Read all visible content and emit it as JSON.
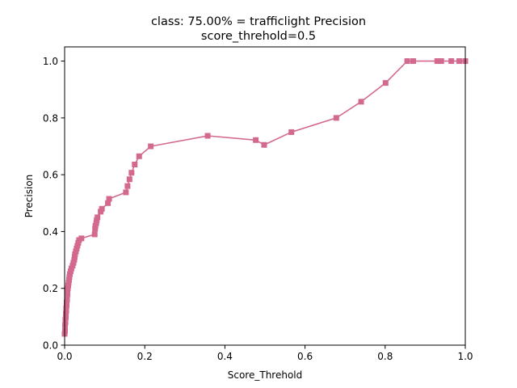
{
  "chart_data": {
    "type": "line",
    "title_line1": "class: 75.00% = trafficlight Precision",
    "title_line2": "score_threhold=0.5",
    "xlabel": "Score_Threhold",
    "ylabel": "Precision",
    "xlim": [
      0.0,
      1.0
    ],
    "ylim": [
      0.0,
      1.05
    ],
    "xticks": [
      0.0,
      0.2,
      0.4,
      0.6,
      0.8,
      1.0
    ],
    "yticks": [
      0.0,
      0.2,
      0.4,
      0.6,
      0.8,
      1.0
    ],
    "xtick_labels": [
      "0.0",
      "0.2",
      "0.4",
      "0.6",
      "0.8",
      "1.0"
    ],
    "ytick_labels": [
      "0.0",
      "0.2",
      "0.4",
      "0.6",
      "0.8",
      "1.0"
    ],
    "grid": false,
    "series": [
      {
        "color": "#d3698f",
        "marker": "square",
        "points": [
          [
            0.0,
            0.04
          ],
          [
            0.001,
            0.05
          ],
          [
            0.001,
            0.07
          ],
          [
            0.002,
            0.08
          ],
          [
            0.002,
            0.09
          ],
          [
            0.003,
            0.1
          ],
          [
            0.003,
            0.11
          ],
          [
            0.004,
            0.12
          ],
          [
            0.004,
            0.13
          ],
          [
            0.005,
            0.14
          ],
          [
            0.005,
            0.15
          ],
          [
            0.006,
            0.16
          ],
          [
            0.006,
            0.17
          ],
          [
            0.007,
            0.18
          ],
          [
            0.007,
            0.19
          ],
          [
            0.008,
            0.2
          ],
          [
            0.009,
            0.21
          ],
          [
            0.01,
            0.22
          ],
          [
            0.011,
            0.23
          ],
          [
            0.012,
            0.24
          ],
          [
            0.013,
            0.25
          ],
          [
            0.015,
            0.26
          ],
          [
            0.017,
            0.27
          ],
          [
            0.02,
            0.28
          ],
          [
            0.022,
            0.29
          ],
          [
            0.024,
            0.3
          ],
          [
            0.025,
            0.31
          ],
          [
            0.026,
            0.32
          ],
          [
            0.028,
            0.33
          ],
          [
            0.03,
            0.34
          ],
          [
            0.032,
            0.35
          ],
          [
            0.034,
            0.36
          ],
          [
            0.036,
            0.37
          ],
          [
            0.042,
            0.376
          ],
          [
            0.075,
            0.39
          ],
          [
            0.076,
            0.41
          ],
          [
            0.077,
            0.42
          ],
          [
            0.079,
            0.43
          ],
          [
            0.08,
            0.44
          ],
          [
            0.082,
            0.45
          ],
          [
            0.09,
            0.47
          ],
          [
            0.093,
            0.48
          ],
          [
            0.108,
            0.5
          ],
          [
            0.111,
            0.515
          ],
          [
            0.153,
            0.538
          ],
          [
            0.157,
            0.56
          ],
          [
            0.162,
            0.584
          ],
          [
            0.167,
            0.607
          ],
          [
            0.175,
            0.636
          ],
          [
            0.186,
            0.665
          ],
          [
            0.215,
            0.7
          ],
          [
            0.357,
            0.737
          ],
          [
            0.477,
            0.722
          ],
          [
            0.498,
            0.705
          ],
          [
            0.566,
            0.75
          ],
          [
            0.678,
            0.8
          ],
          [
            0.74,
            0.857
          ],
          [
            0.801,
            0.923
          ],
          [
            0.855,
            1.0
          ],
          [
            0.87,
            1.0
          ],
          [
            0.93,
            1.0
          ],
          [
            0.94,
            1.0
          ],
          [
            0.965,
            1.0
          ],
          [
            0.985,
            1.0
          ],
          [
            1.0,
            1.0
          ]
        ]
      }
    ]
  }
}
